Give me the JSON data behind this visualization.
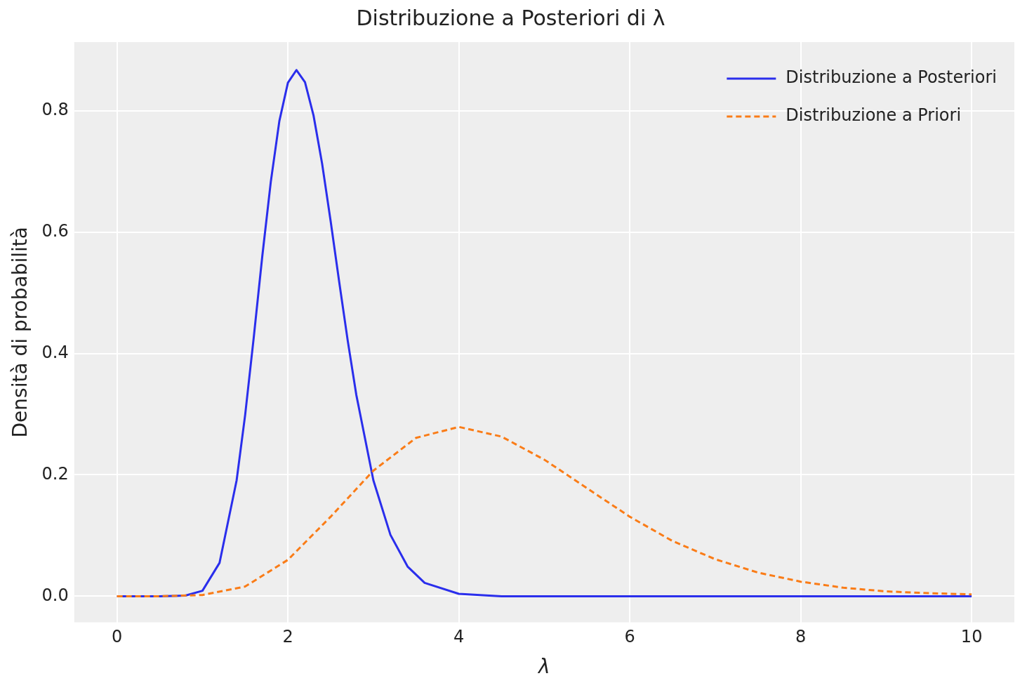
{
  "chart_data": {
    "type": "line",
    "title": "Distribuzione a Posteriori di λ",
    "xlabel": "λ",
    "ylabel": "Densità di probabilità",
    "xlim": [
      -0.5,
      10.5
    ],
    "ylim": [
      -0.043,
      0.913
    ],
    "xticks": [
      0,
      2,
      4,
      6,
      8,
      10
    ],
    "yticks": [
      {
        "value": 0,
        "label": "0.0"
      },
      {
        "value": 0.2,
        "label": "0.2"
      },
      {
        "value": 0.4,
        "label": "0.4"
      },
      {
        "value": 0.6,
        "label": "0.6"
      },
      {
        "value": 0.8,
        "label": "0.8"
      }
    ],
    "grid": true,
    "legend": "top right",
    "marker": "none",
    "series": [
      {
        "name": "Distribuzione a Posteriori",
        "color": "#2a2eec",
        "line_style": "solid",
        "x": [
          0,
          0.5,
          0.8,
          1.0,
          1.2,
          1.4,
          1.5,
          1.6,
          1.7,
          1.8,
          1.9,
          2.0,
          2.1,
          2.2,
          2.3,
          2.4,
          2.5,
          2.6,
          2.7,
          2.8,
          3.0,
          3.2,
          3.4,
          3.6,
          4.0,
          4.5,
          5,
          6,
          8,
          10
        ],
        "values": [
          0,
          0,
          0.001,
          0.009,
          0.055,
          0.191,
          0.299,
          0.426,
          0.56,
          0.683,
          0.783,
          0.846,
          0.867,
          0.847,
          0.792,
          0.713,
          0.618,
          0.518,
          0.421,
          0.332,
          0.191,
          0.101,
          0.049,
          0.022,
          0.004,
          0,
          0,
          0,
          0,
          0
        ]
      },
      {
        "name": "Distribuzione a Priori",
        "color": "#fa7c17",
        "line_style": "dashed",
        "x": [
          0,
          0.5,
          1.0,
          1.5,
          2.0,
          2.5,
          3.0,
          3.5,
          4.0,
          4.5,
          5.0,
          5.5,
          6.0,
          6.5,
          7.0,
          7.5,
          8.0,
          8.5,
          9.0,
          9.5,
          10
        ],
        "values": [
          0,
          0,
          0.002,
          0.016,
          0.06,
          0.131,
          0.207,
          0.261,
          0.279,
          0.263,
          0.225,
          0.178,
          0.131,
          0.091,
          0.061,
          0.039,
          0.024,
          0.014,
          0.008,
          0.005,
          0.003
        ]
      }
    ]
  }
}
